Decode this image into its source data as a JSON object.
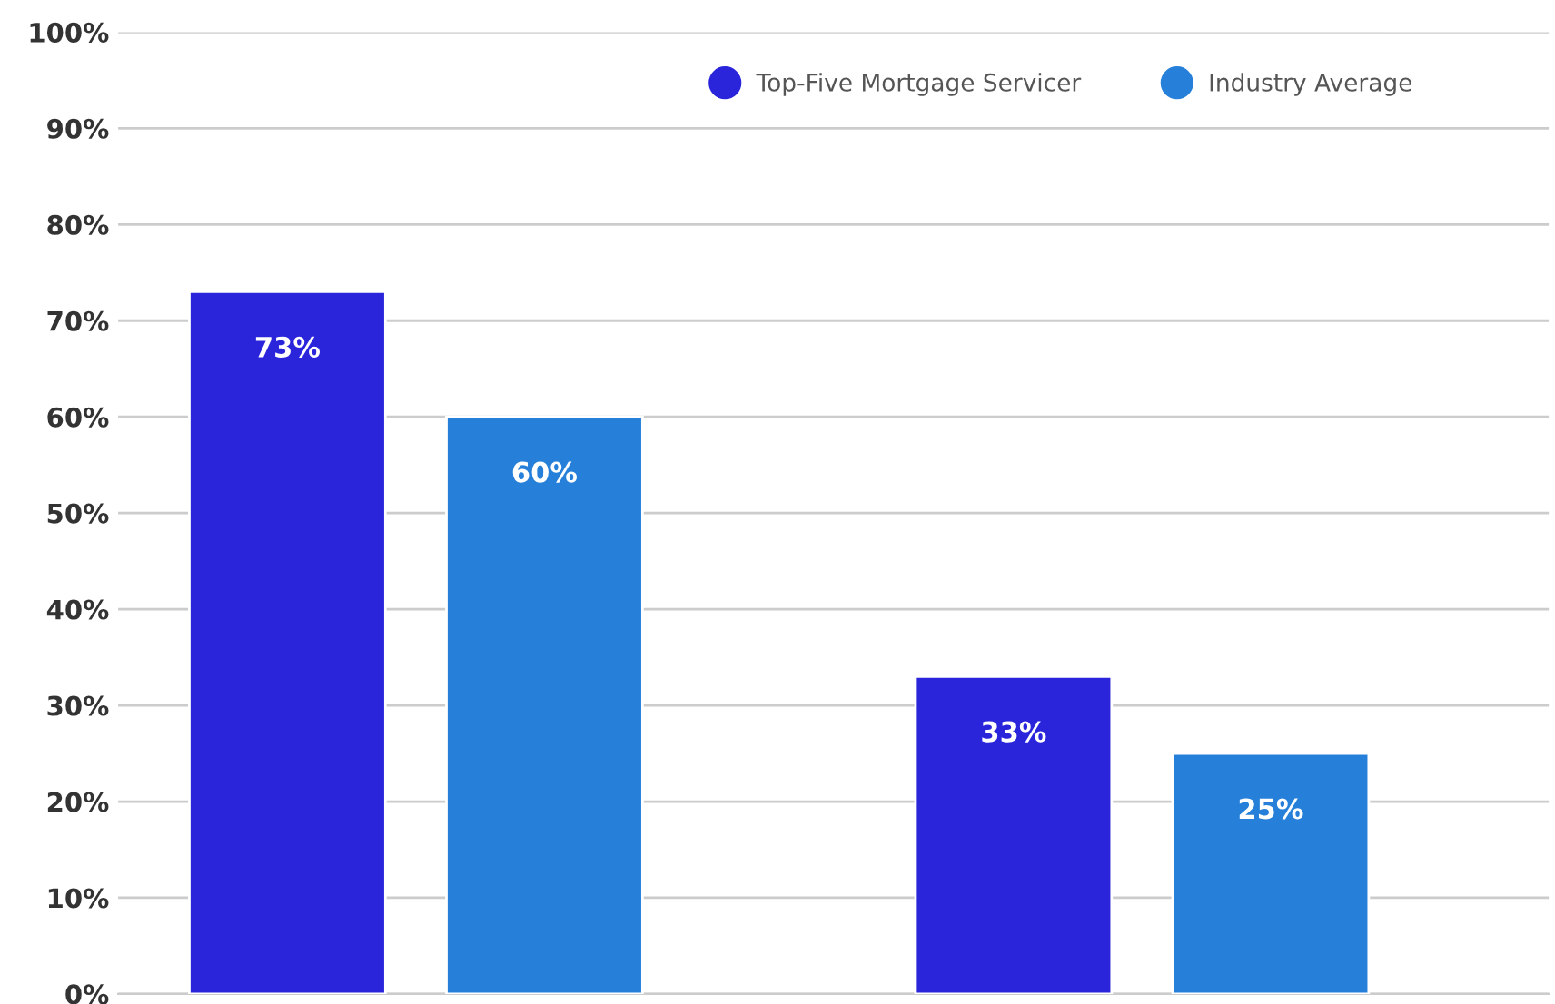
{
  "chart_data": {
    "type": "bar",
    "categories": [
      null,
      null
    ],
    "series": [
      {
        "name": "Top-Five Mortgage Servicer",
        "color": "#2a25db",
        "values": [
          73,
          33
        ],
        "value_labels": [
          "73%",
          "33%"
        ]
      },
      {
        "name": "Industry Average",
        "color": "#2680da",
        "values": [
          60,
          25
        ],
        "value_labels": [
          "60%",
          "25%"
        ]
      }
    ],
    "ylim": [
      0,
      100
    ],
    "yticks": [
      {
        "value": 0,
        "label": "0%"
      },
      {
        "value": 10,
        "label": "10%"
      },
      {
        "value": 20,
        "label": "20%"
      },
      {
        "value": 30,
        "label": "30%"
      },
      {
        "value": 40,
        "label": "40%"
      },
      {
        "value": 50,
        "label": "50%"
      },
      {
        "value": 60,
        "label": "60%"
      },
      {
        "value": 70,
        "label": "70%"
      },
      {
        "value": 80,
        "label": "80%"
      },
      {
        "value": 90,
        "label": "90%"
      },
      {
        "value": 100,
        "label": "100%"
      }
    ],
    "grid": "y",
    "legend": "top right",
    "marker": "circle"
  }
}
